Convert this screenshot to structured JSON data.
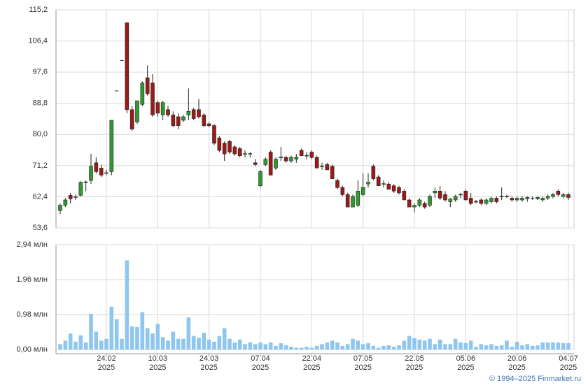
{
  "chart_data": {
    "type": "candlestick",
    "categories": [
      null,
      null,
      null,
      null,
      null,
      null,
      null,
      null,
      null,
      [
        "24.02",
        "2025"
      ],
      null,
      null,
      null,
      null,
      null,
      null,
      null,
      null,
      null,
      [
        "10.03",
        "2025"
      ],
      null,
      null,
      null,
      null,
      null,
      null,
      null,
      null,
      null,
      [
        "24.03",
        "2025"
      ],
      null,
      null,
      null,
      null,
      null,
      null,
      null,
      null,
      null,
      [
        "07.04",
        "2025"
      ],
      null,
      null,
      null,
      null,
      null,
      null,
      null,
      null,
      null,
      [
        "22.04",
        "2025"
      ],
      null,
      null,
      null,
      null,
      null,
      null,
      null,
      null,
      null,
      [
        "07.05",
        "2025"
      ],
      null,
      null,
      null,
      null,
      null,
      null,
      null,
      null,
      null,
      [
        "22.05",
        "2025"
      ],
      null,
      null,
      null,
      null,
      null,
      null,
      null,
      null,
      null,
      [
        "05.06",
        "2025"
      ],
      null,
      null,
      null,
      null,
      null,
      null,
      null,
      null,
      null,
      [
        "20.06",
        "2025"
      ],
      null,
      null,
      null,
      null,
      null,
      null,
      null,
      null,
      null,
      [
        "04.07",
        "2025"
      ]
    ],
    "open": [
      58.5,
      60,
      62.8,
      62.2,
      62.8,
      66.4,
      67,
      72,
      70.5,
      69,
      69.5,
      92.3,
      100.9,
      111.5,
      87,
      83.5,
      88.5,
      96,
      94.5,
      89,
      85.5,
      87,
      85.5,
      85,
      84,
      85.5,
      87,
      87,
      85.5,
      83,
      82.5,
      79,
      77.5,
      78,
      76.5,
      76,
      74.4,
      74.4,
      72,
      65.5,
      71.5,
      75,
      70.5,
      73.4,
      73.5,
      72.5,
      73,
      75.5,
      73.9,
      75,
      73.5,
      70.9,
      71.5,
      71,
      67,
      65,
      63,
      59.5,
      60,
      63,
      66,
      71,
      68,
      65.9,
      66,
      65.5,
      65,
      64,
      61.5,
      59.5,
      60,
      60.5,
      60,
      63.5,
      64,
      63,
      61,
      61.5,
      62.9,
      64,
      62,
      60.9,
      61.5,
      60.5,
      61,
      62,
      62.4,
      62.4,
      62,
      61.5,
      61.5,
      61.8,
      62,
      61.8,
      61.5,
      62,
      62.5,
      64,
      62.5,
      63
    ],
    "high": [
      60.5,
      62,
      63.5,
      63,
      66.8,
      67,
      74.5,
      73.5,
      71.5,
      70,
      84,
      92.3,
      100.9,
      111.7,
      88,
      89.5,
      95,
      99.5,
      97,
      89.5,
      89.5,
      88,
      86.5,
      86,
      85.5,
      93,
      87.5,
      90,
      86,
      83.5,
      83,
      79.5,
      78,
      78.5,
      77,
      76.5,
      75.5,
      75,
      73,
      70,
      73.5,
      75.5,
      73.5,
      76.5,
      74,
      74,
      74.5,
      76,
      75,
      75.5,
      74,
      72,
      72,
      71.5,
      67.5,
      65.5,
      63.5,
      63,
      67,
      69,
      69,
      71.5,
      68.5,
      67,
      66.5,
      66,
      65.5,
      64.5,
      62,
      60.5,
      62,
      61,
      63,
      65,
      65.5,
      64,
      62,
      63,
      63.5,
      64.5,
      63.5,
      61.5,
      62,
      62,
      62.5,
      62.5,
      65,
      63,
      62.5,
      62.5,
      62.5,
      62.5,
      62.5,
      62.5,
      62.5,
      63,
      63.5,
      64.5,
      63.5,
      63.5
    ],
    "low": [
      57.5,
      59.5,
      60.5,
      61.5,
      62.5,
      64,
      66,
      69,
      68,
      68.5,
      68.5,
      92.3,
      100.9,
      86,
      81,
      83,
      88,
      91,
      85,
      85,
      84,
      85,
      82,
      81.5,
      83.5,
      84,
      84,
      84.5,
      82,
      82,
      77,
      75,
      72.5,
      74.5,
      74,
      73.5,
      73.5,
      73.5,
      71,
      65,
      71,
      68.5,
      70,
      72.5,
      72,
      72,
      72,
      74,
      73,
      73,
      70.5,
      70,
      70,
      67.5,
      64.5,
      62.5,
      59.5,
      59.5,
      59.5,
      62.5,
      65,
      67,
      65.5,
      65,
      64.5,
      63.5,
      63,
      61.5,
      59.5,
      58,
      59.5,
      59,
      59.5,
      62,
      61.5,
      61,
      59.5,
      61,
      62,
      61.5,
      60,
      60.5,
      60,
      60,
      60.5,
      60.5,
      61.5,
      62,
      61,
      61,
      61,
      61,
      61.5,
      61.5,
      61,
      61.5,
      62,
      62.5,
      62,
      61.5
    ],
    "close": [
      60,
      61.5,
      61.8,
      62.4,
      66.5,
      66.6,
      71,
      69.5,
      68.5,
      69.2,
      84,
      92.3,
      100.9,
      87,
      81.5,
      89.5,
      94.5,
      91.5,
      85.5,
      86,
      89,
      85.5,
      82.5,
      82.5,
      85,
      86.5,
      84.5,
      85,
      82.5,
      82.5,
      77.5,
      75.5,
      74.5,
      75,
      74.5,
      74,
      74.6,
      74.6,
      71.5,
      69.5,
      73,
      68.5,
      73,
      73.6,
      72.5,
      73.5,
      73.5,
      74,
      74.1,
      73.5,
      70.5,
      71.1,
      70,
      67.5,
      65,
      63,
      59.5,
      62.5,
      64,
      65,
      66.5,
      67.5,
      65.5,
      66.1,
      64.5,
      64,
      63.5,
      61.5,
      59.5,
      60,
      61.5,
      59.5,
      62.5,
      64,
      62,
      61.5,
      61.8,
      62.5,
      63.1,
      61.5,
      60.5,
      61.1,
      60.5,
      61.5,
      62,
      61,
      62.6,
      62.6,
      61.5,
      62,
      62,
      62.2,
      62,
      62.2,
      62,
      62.5,
      63,
      63,
      63,
      62.2
    ],
    "up_color": "#2f9a2f",
    "down_color": "#9b1a1a",
    "ylim": [
      53.6,
      115.2
    ],
    "yticks": [
      {
        "value": 53.6,
        "label": "53,6"
      },
      {
        "value": 62.4,
        "label": "62,4"
      },
      {
        "value": 71.2,
        "label": "71,2"
      },
      {
        "value": 80.0,
        "label": "80,0"
      },
      {
        "value": 88.8,
        "label": "88,8"
      },
      {
        "value": 97.6,
        "label": "97,6"
      },
      {
        "value": 106.4,
        "label": "106,4"
      },
      {
        "value": 115.2,
        "label": "115,2"
      }
    ],
    "grid": true,
    "volume": {
      "type": "bar",
      "color": "#8ec6ef",
      "values": [
        0.15,
        0.25,
        0.45,
        0.22,
        0.4,
        0.2,
        1.0,
        0.5,
        0.25,
        0.3,
        1.2,
        0.85,
        0.3,
        2.5,
        0.65,
        0.63,
        1.05,
        0.6,
        0.45,
        0.72,
        0.35,
        0.25,
        0.5,
        0.3,
        0.3,
        0.9,
        0.38,
        0.33,
        0.47,
        0.28,
        0.22,
        0.38,
        0.6,
        0.3,
        0.2,
        0.28,
        0.15,
        0.2,
        0.15,
        0.2,
        0.15,
        0.2,
        0.1,
        0.18,
        0.12,
        0.08,
        0.05,
        0.05,
        0.08,
        0.05,
        0.1,
        0.15,
        0.2,
        0.25,
        0.2,
        0.1,
        0.15,
        0.3,
        0.25,
        0.15,
        0.18,
        0.1,
        0.05,
        0.1,
        0.12,
        0.08,
        0.12,
        0.25,
        0.38,
        0.32,
        0.28,
        0.25,
        0.3,
        0.15,
        0.28,
        0.15,
        0.15,
        0.3,
        0.2,
        0.18,
        0.25,
        0.08,
        0.15,
        0.12,
        0.15,
        0.1,
        0.12,
        0.25,
        0.08,
        0.22,
        0.12,
        0.15,
        0.1,
        0.12,
        0.2,
        0.2,
        0.2,
        0.2,
        0.18,
        0.18
      ],
      "ylim": [
        0,
        2.94
      ],
      "yticks": [
        {
          "value": 0,
          "label": "0,00 млн"
        },
        {
          "value": 0.98,
          "label": "0,98 млн"
        },
        {
          "value": 1.96,
          "label": "1,96 млн"
        },
        {
          "value": 2.94,
          "label": "2,94 млн"
        }
      ]
    }
  },
  "footer": "© 1994–2025 Finmarket.ru"
}
